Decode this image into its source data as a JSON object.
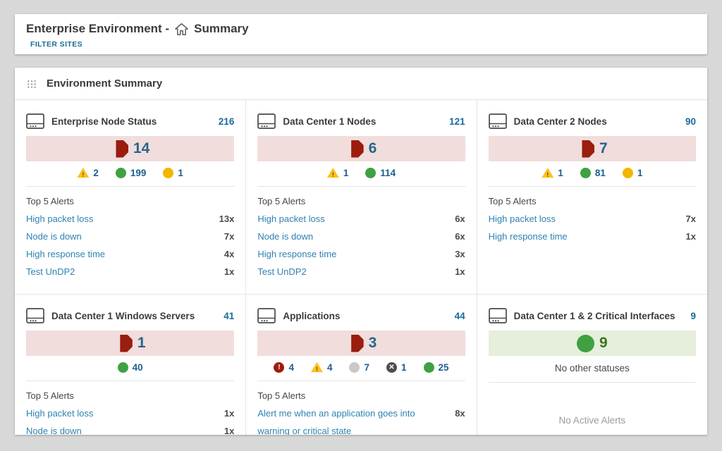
{
  "page": {
    "title_prefix": "Enterprise Environment -",
    "title_suffix": "Summary",
    "filter_sites_label": "FILTER SITES"
  },
  "widget": {
    "title": "Environment Summary"
  },
  "colors": {
    "accent_blue": "#186b9e",
    "link_blue": "#2e82b2",
    "critical_banner_bg": "#f0dddc",
    "ok_banner_bg": "#e5efdb",
    "banner_number_blue": "#26648e",
    "banner_number_green": "#38761d"
  },
  "status_colors": {
    "down-octagon": "#9a1d0f",
    "up-circle": "#3fa142",
    "external-circle": "#f2b600",
    "warning-triangle": "#f7c41f",
    "critical-circle": "#a01c10",
    "unknown-circle": "#c9c9c9",
    "down-x-circle": "#4d4d4d"
  },
  "status_glyphs": {
    "warning-triangle": "!",
    "critical-circle": "!",
    "down-x-circle": "✕"
  },
  "cards": [
    {
      "title": "Enterprise Node Status",
      "total": "216",
      "banner": {
        "type": "down-octagon",
        "count": "14",
        "tone": "critical"
      },
      "statuses": [
        {
          "type": "warning-triangle",
          "count": "2"
        },
        {
          "type": "up-circle",
          "count": "199"
        },
        {
          "type": "external-circle",
          "count": "1"
        }
      ],
      "alerts_title": "Top 5 Alerts",
      "alerts": [
        {
          "label": "High packet loss",
          "count": "13x"
        },
        {
          "label": "Node is down",
          "count": "7x"
        },
        {
          "label": "High response time",
          "count": "4x"
        },
        {
          "label": "Test UnDP2",
          "count": "1x"
        }
      ]
    },
    {
      "title": "Data Center 1 Nodes",
      "total": "121",
      "banner": {
        "type": "down-octagon",
        "count": "6",
        "tone": "critical"
      },
      "statuses": [
        {
          "type": "warning-triangle",
          "count": "1"
        },
        {
          "type": "up-circle",
          "count": "114"
        }
      ],
      "alerts_title": "Top 5 Alerts",
      "alerts": [
        {
          "label": "High packet loss",
          "count": "6x"
        },
        {
          "label": "Node is down",
          "count": "6x"
        },
        {
          "label": "High response time",
          "count": "3x"
        },
        {
          "label": "Test UnDP2",
          "count": "1x"
        }
      ]
    },
    {
      "title": "Data Center 2 Nodes",
      "total": "90",
      "banner": {
        "type": "down-octagon",
        "count": "7",
        "tone": "critical"
      },
      "statuses": [
        {
          "type": "warning-triangle",
          "count": "1"
        },
        {
          "type": "up-circle",
          "count": "81"
        },
        {
          "type": "external-circle",
          "count": "1"
        }
      ],
      "alerts_title": "Top 5 Alerts",
      "alerts": [
        {
          "label": "High packet loss",
          "count": "7x"
        },
        {
          "label": "High response time",
          "count": "1x"
        }
      ]
    },
    {
      "title": "Data Center 1 Windows Servers",
      "total": "41",
      "banner": {
        "type": "down-octagon",
        "count": "1",
        "tone": "critical"
      },
      "statuses": [
        {
          "type": "up-circle",
          "count": "40"
        }
      ],
      "alerts_title": "Top 5 Alerts",
      "alerts": [
        {
          "label": "High packet loss",
          "count": "1x"
        },
        {
          "label": "Node is down",
          "count": "1x"
        }
      ]
    },
    {
      "title": "Applications",
      "total": "44",
      "banner": {
        "type": "down-octagon",
        "count": "3",
        "tone": "critical"
      },
      "statuses": [
        {
          "type": "critical-circle",
          "count": "4"
        },
        {
          "type": "warning-triangle",
          "count": "4"
        },
        {
          "type": "unknown-circle",
          "count": "7"
        },
        {
          "type": "down-x-circle",
          "count": "1"
        },
        {
          "type": "up-circle",
          "count": "25"
        }
      ],
      "alerts_title": "Top 5 Alerts",
      "alerts": [
        {
          "label": "Alert me when an application goes into warning or critical state",
          "count": "8x"
        }
      ]
    },
    {
      "title": "Data Center 1 & 2 Critical Interfaces",
      "total": "9",
      "banner": {
        "type": "up-circle",
        "count": "9",
        "tone": "ok"
      },
      "no_statuses_text": "No other statuses",
      "no_alerts_text": "No Active Alerts"
    }
  ]
}
